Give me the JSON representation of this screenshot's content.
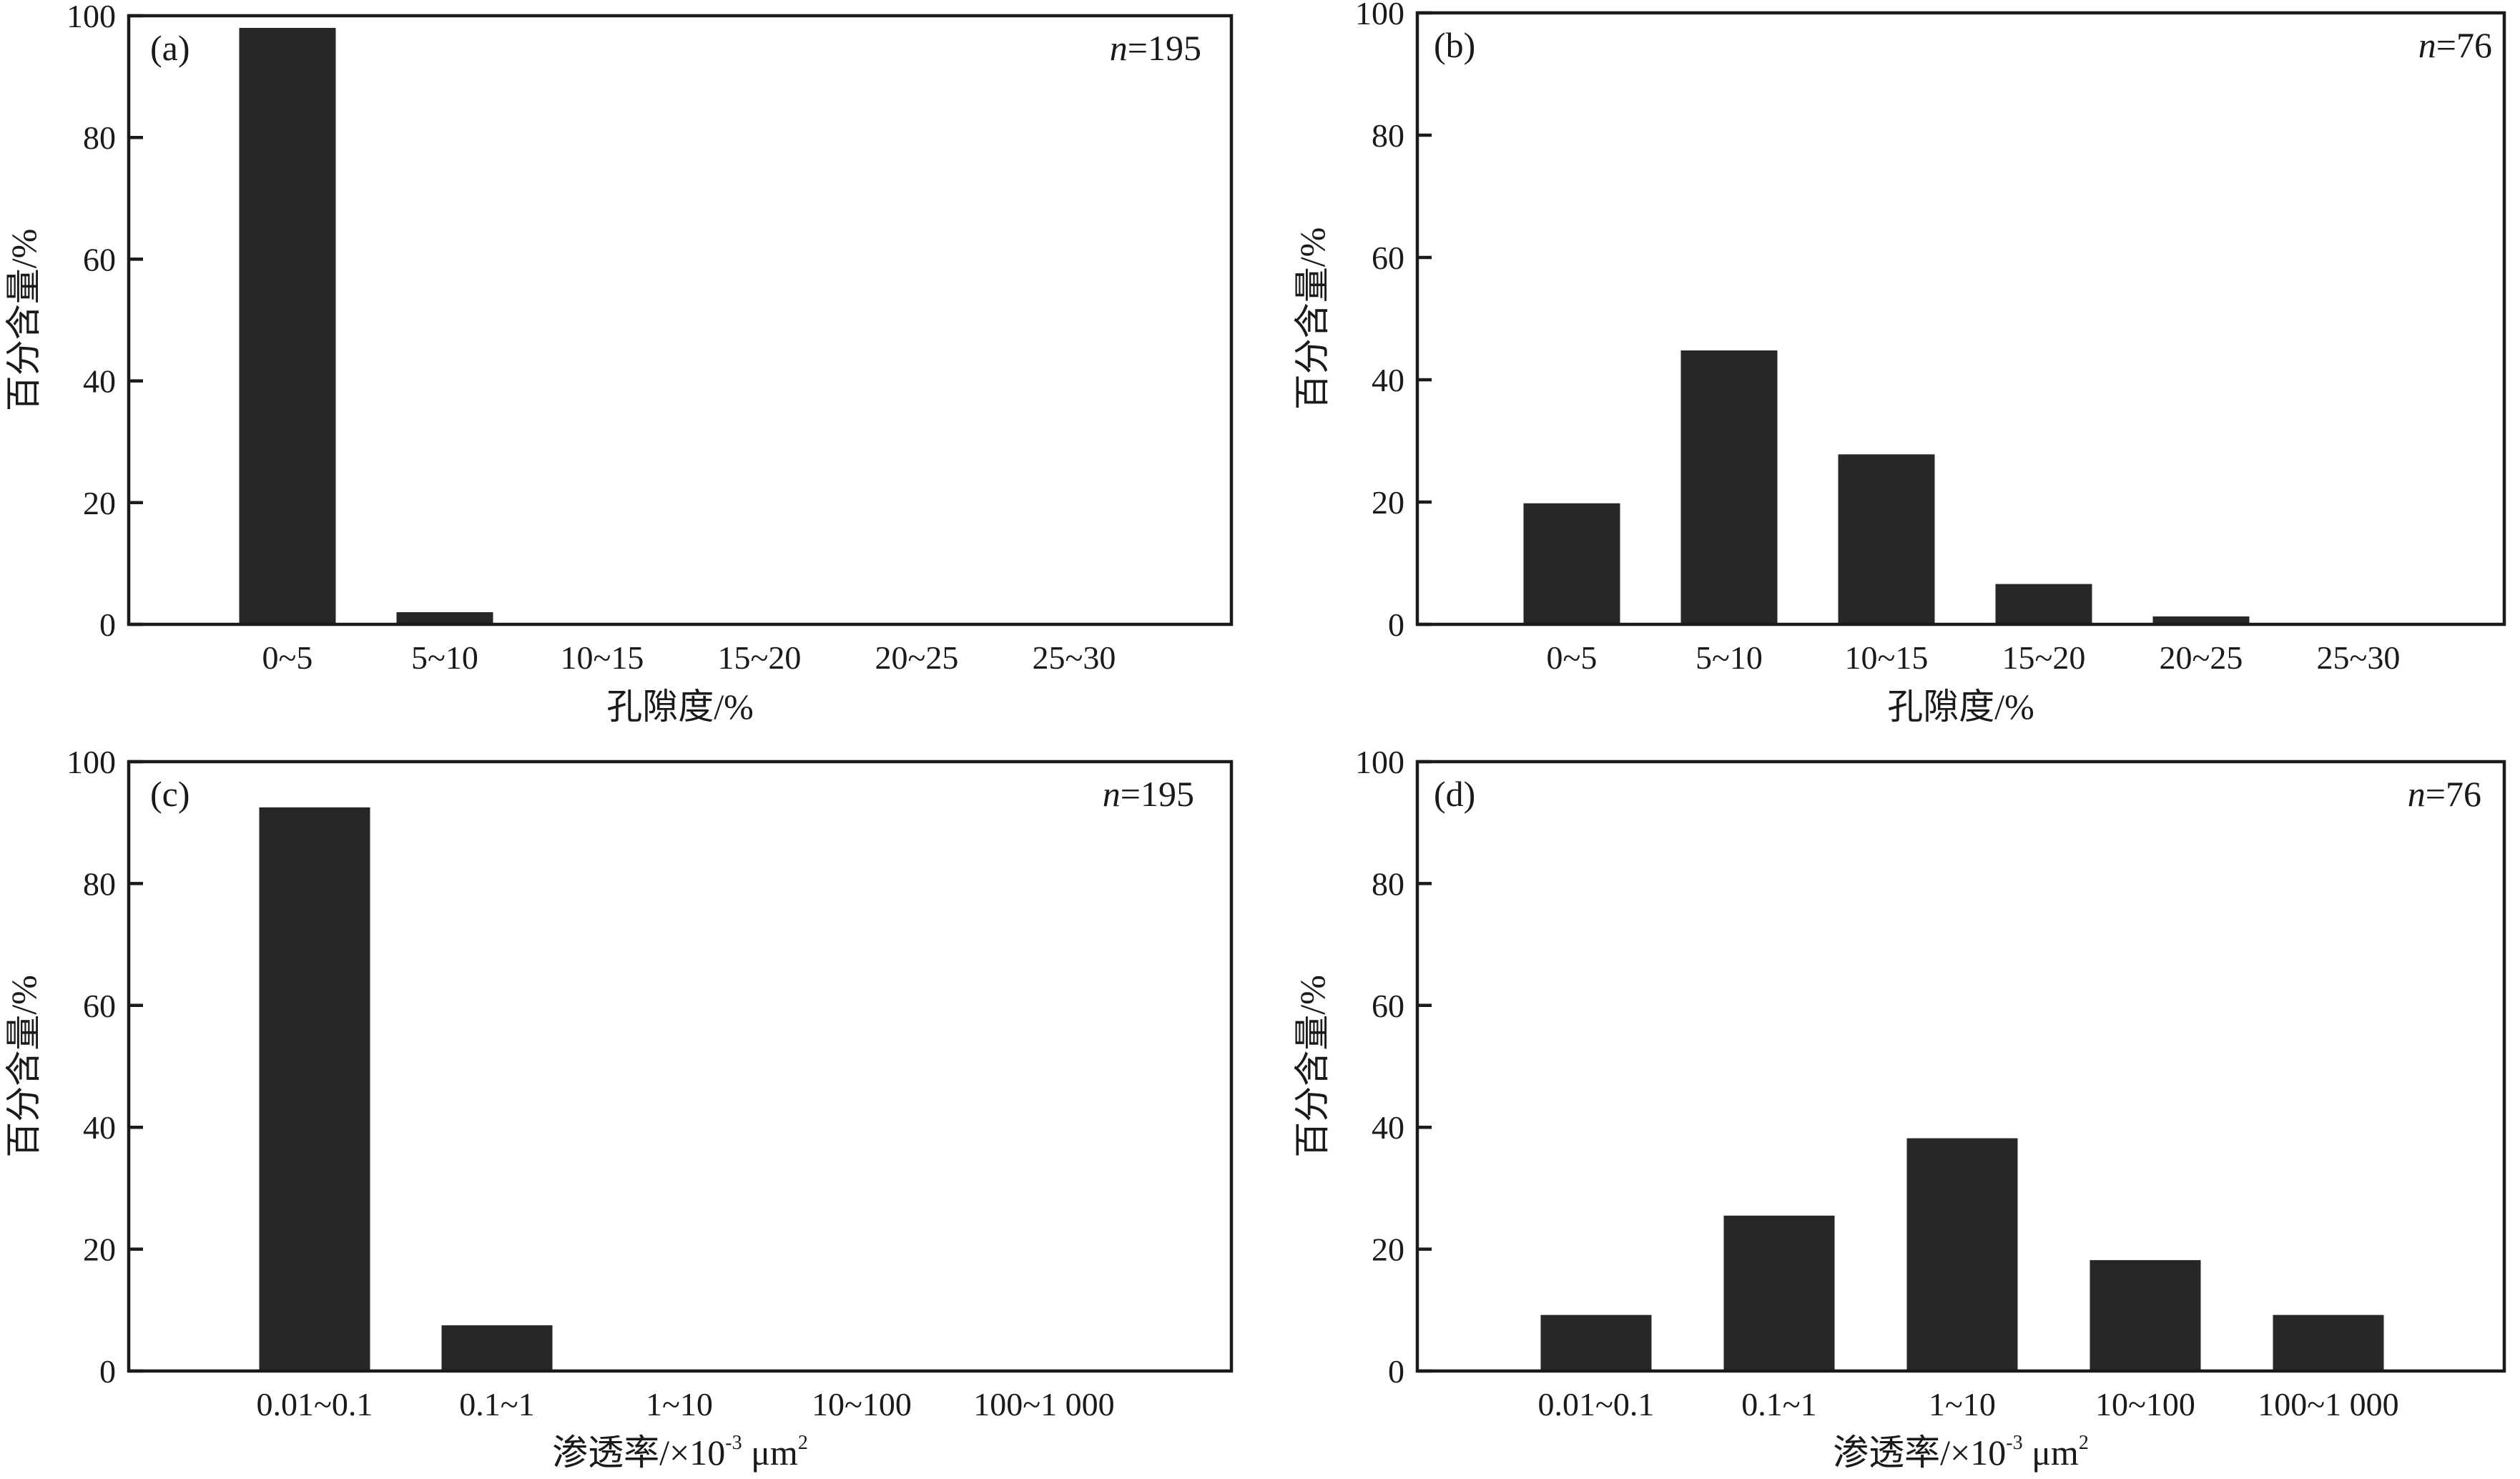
{
  "figure": {
    "background": "#ffffff",
    "bar_color": "#262626",
    "axis_color": "#1a1a1a"
  },
  "chart_data": [
    {
      "type": "bar",
      "panel_label": "(a)",
      "n_prefix": "n",
      "n_value": "=195",
      "categories": [
        "0~5",
        "5~10",
        "10~15",
        "15~20",
        "20~25",
        "25~30"
      ],
      "values": [
        98.0,
        2.0,
        0,
        0,
        0,
        0
      ],
      "ylabel": "百分含量/%",
      "xlabel": "孔隙度/%",
      "ylim": [
        0,
        100
      ],
      "yticks": [
        0,
        20,
        40,
        60,
        80,
        100
      ],
      "grid": false
    },
    {
      "type": "bar",
      "panel_label": "(b)",
      "n_prefix": "n",
      "n_value": "=76",
      "categories": [
        "0~5",
        "5~10",
        "10~15",
        "15~20",
        "20~25",
        "25~30"
      ],
      "values": [
        19.8,
        44.8,
        27.8,
        6.6,
        1.3,
        0
      ],
      "ylabel": "百分含量/%",
      "xlabel": "孔隙度/%",
      "ylim": [
        0,
        100
      ],
      "yticks": [
        0,
        20,
        40,
        60,
        80,
        100
      ],
      "grid": false
    },
    {
      "type": "bar",
      "panel_label": "(c)",
      "n_prefix": "n",
      "n_value": "=195",
      "categories": [
        "0.01~0.1",
        "0.1~1",
        "1~10",
        "10~100",
        "100~1 000"
      ],
      "values": [
        92.5,
        7.5,
        0,
        0,
        0
      ],
      "ylabel": "百分含量/%",
      "xlabel": "渗透率/×10",
      "xlabel_exp": "-3",
      "xlabel_unit": " μm",
      "xlabel_unit_exp": "2",
      "ylim": [
        0,
        100
      ],
      "yticks": [
        0,
        20,
        40,
        60,
        80,
        100
      ],
      "grid": false
    },
    {
      "type": "bar",
      "panel_label": "(d)",
      "n_prefix": "n",
      "n_value": "=76",
      "categories": [
        "0.01~0.1",
        "0.1~1",
        "1~10",
        "10~100",
        "100~1 000"
      ],
      "values": [
        9.2,
        25.5,
        38.2,
        18.2,
        9.2
      ],
      "ylabel": "百分含量/%",
      "xlabel": "渗透率/×10",
      "xlabel_exp": "-3",
      "xlabel_unit": " μm",
      "xlabel_unit_exp": "2",
      "ylim": [
        0,
        100
      ],
      "yticks": [
        0,
        20,
        40,
        60,
        80,
        100
      ],
      "grid": false
    }
  ]
}
